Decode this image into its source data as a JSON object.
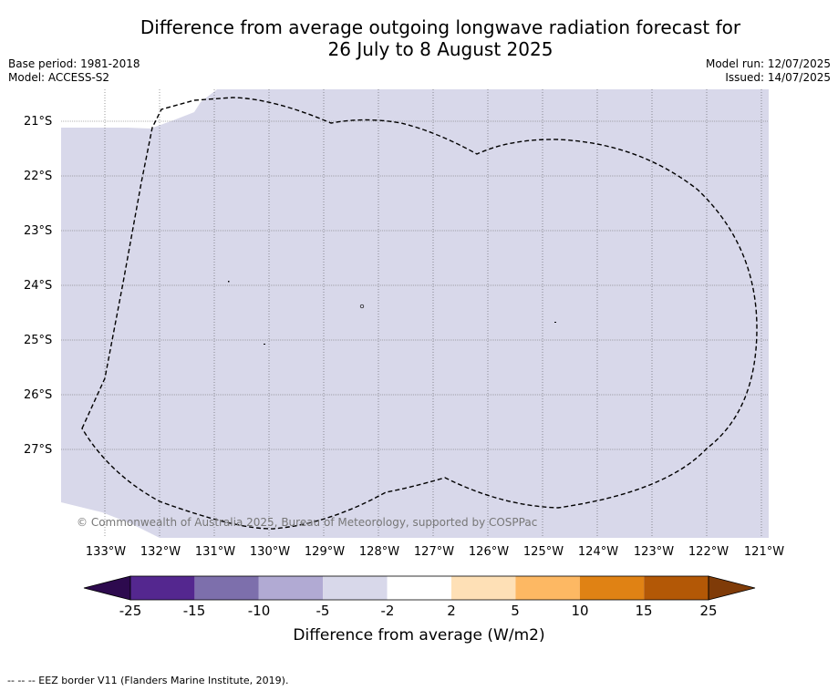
{
  "title_line1": "Difference from average outgoing longwave radiation forecast for",
  "title_line2": "26 July to 8 August 2025",
  "base_period": "Base period: 1981-2018",
  "model": "Model: ACCESS-S2",
  "model_run": "Model run: 12/07/2025",
  "issued": "Issued: 14/07/2025",
  "map": {
    "lat_labels": [
      "21°S",
      "22°S",
      "23°S",
      "24°S",
      "25°S",
      "26°S",
      "27°S"
    ],
    "lon_labels": [
      "133°W",
      "132°W",
      "131°W",
      "130°W",
      "129°W",
      "128°W",
      "127°W",
      "126°W",
      "125°W",
      "124°W",
      "123°W",
      "122°W",
      "121°W"
    ],
    "field_color": "#d8d8ea",
    "credit": "© Commonwealth of Australia 2025, Bureau of Meteorology, supported by COSPPac"
  },
  "colorbar": {
    "label": "Difference from average (W/m2)",
    "ticks": [
      "-25",
      "-15",
      "-10",
      "-5",
      "-2",
      "2",
      "5",
      "10",
      "15",
      "25"
    ],
    "colors": [
      "#2d0a4e",
      "#54278f",
      "#7d6fac",
      "#b1aad3",
      "#d8d8ea",
      "#ffffff",
      "#fee0b6",
      "#fdb863",
      "#e08214",
      "#b35806",
      "#7f3b08"
    ]
  },
  "footer": "--  --  -- EEZ border V11 (Flanders Marine Institute, 2019)."
}
